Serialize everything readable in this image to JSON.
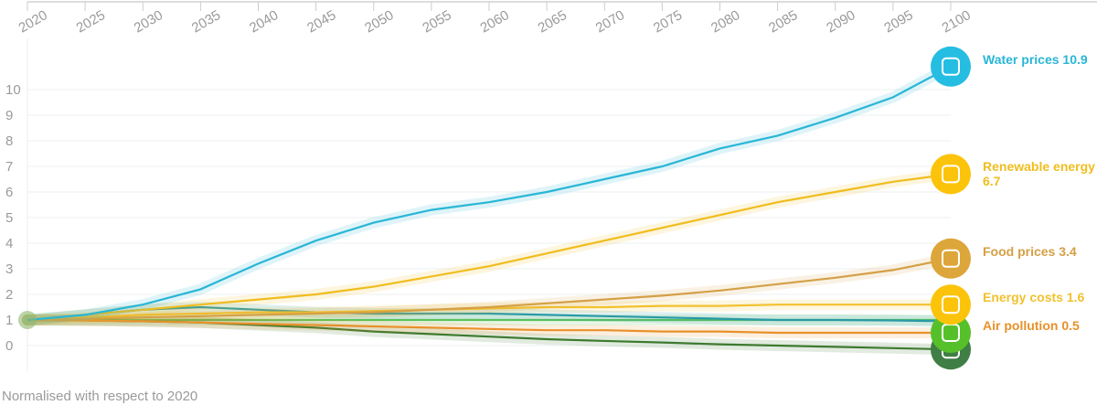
{
  "chart_data": {
    "type": "line",
    "footnote": "Normalised with respect to 2020",
    "x": [
      2020,
      2025,
      2030,
      2035,
      2040,
      2045,
      2050,
      2055,
      2060,
      2065,
      2070,
      2075,
      2080,
      2085,
      2090,
      2095,
      2100
    ],
    "xlim": [
      2020,
      2100
    ],
    "xticks": [
      2020,
      2025,
      2030,
      2035,
      2040,
      2045,
      2050,
      2055,
      2060,
      2065,
      2070,
      2075,
      2080,
      2085,
      2090,
      2095,
      2100
    ],
    "ylim": [
      -1,
      12
    ],
    "yticks": [
      0,
      1,
      2,
      3,
      4,
      5,
      6,
      7,
      8,
      9,
      10
    ],
    "grid": true,
    "series": [
      {
        "color": "#5cc25a",
        "values": [
          1,
          1,
          1,
          1,
          1,
          1,
          1,
          1,
          1,
          1,
          1,
          1,
          1,
          1,
          1,
          1,
          1
        ]
      },
      {
        "color": "#2a9aa6",
        "values": [
          1,
          1.2,
          1.4,
          1.5,
          1.4,
          1.3,
          1.25,
          1.25,
          1.25,
          1.2,
          1.15,
          1.1,
          1.05,
          1.0,
          1.0,
          0.98,
          0.95
        ]
      },
      {
        "color": "#3d7a2e",
        "icon_color": "#3f7e44",
        "values": [
          1,
          0.98,
          0.95,
          0.9,
          0.8,
          0.7,
          0.55,
          0.45,
          0.35,
          0.25,
          0.18,
          0.12,
          0.05,
          0,
          -0.05,
          -0.1,
          -0.15
        ]
      },
      {
        "name": "Air pollution",
        "color": "#e8912a",
        "icon_color": "#56c02b",
        "values": [
          1,
          0.98,
          0.95,
          0.9,
          0.85,
          0.8,
          0.75,
          0.7,
          0.65,
          0.6,
          0.6,
          0.55,
          0.55,
          0.5,
          0.5,
          0.5,
          0.5
        ]
      },
      {
        "name": "Energy costs",
        "color": "#f2c12e",
        "icon_color": "#fcc30b",
        "values": [
          1,
          1.1,
          1.2,
          1.25,
          1.3,
          1.3,
          1.35,
          1.4,
          1.45,
          1.5,
          1.5,
          1.55,
          1.55,
          1.6,
          1.6,
          1.6,
          1.6
        ]
      },
      {
        "name": "Food prices",
        "color": "#d4a046",
        "icon_color": "#dda63a",
        "values": [
          1,
          1.05,
          1.1,
          1.15,
          1.2,
          1.25,
          1.3,
          1.4,
          1.5,
          1.65,
          1.8,
          1.95,
          2.15,
          2.4,
          2.65,
          2.95,
          3.4
        ]
      },
      {
        "name": "Renewable energy",
        "color": "#f0bd1e",
        "icon_color": "#fcc30b",
        "values": [
          1,
          1.2,
          1.4,
          1.6,
          1.8,
          2.0,
          2.3,
          2.7,
          3.1,
          3.6,
          4.1,
          4.6,
          5.1,
          5.6,
          6.0,
          6.4,
          6.7
        ]
      },
      {
        "name": "Water prices",
        "color": "#29b6d6",
        "icon_color": "#26bde2",
        "values": [
          1,
          1.2,
          1.6,
          2.2,
          3.2,
          4.1,
          4.8,
          5.3,
          5.6,
          6.0,
          6.5,
          7.0,
          7.7,
          8.2,
          8.9,
          9.7,
          10.9
        ]
      }
    ]
  }
}
